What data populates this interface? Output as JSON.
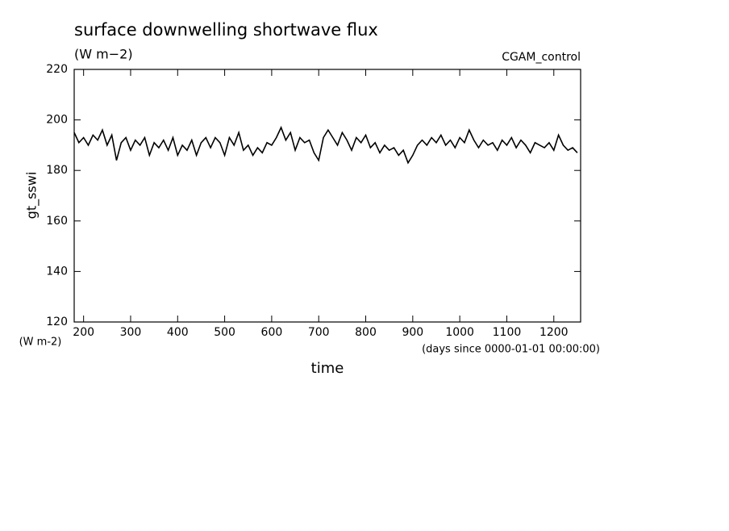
{
  "chart_data": {
    "type": "line",
    "title": "surface downwelling shortwave flux",
    "subtitle": "(W m−2)",
    "annotation": "CGAM_control",
    "y_label": "gt_sswi",
    "y_units": "(W m-2)",
    "x_label": "time",
    "x_units": "(days since 0000-01-01 00:00:00)",
    "xlim": [
      180,
      1257
    ],
    "ylim": [
      120,
      220
    ],
    "xticks": [
      200,
      300,
      400,
      500,
      600,
      700,
      800,
      900,
      1000,
      1100,
      1200
    ],
    "yticks": [
      120,
      140,
      160,
      180,
      200,
      220
    ],
    "grid": false,
    "x": [
      180,
      190,
      200,
      210,
      220,
      230,
      240,
      250,
      260,
      270,
      280,
      290,
      300,
      310,
      320,
      330,
      340,
      350,
      360,
      370,
      380,
      390,
      400,
      410,
      420,
      430,
      440,
      450,
      460,
      470,
      480,
      490,
      500,
      510,
      520,
      530,
      540,
      550,
      560,
      570,
      580,
      590,
      600,
      610,
      620,
      630,
      640,
      650,
      660,
      670,
      680,
      690,
      700,
      710,
      720,
      730,
      740,
      750,
      760,
      770,
      780,
      790,
      800,
      810,
      820,
      830,
      840,
      850,
      860,
      870,
      880,
      890,
      900,
      910,
      920,
      930,
      940,
      950,
      960,
      970,
      980,
      990,
      1000,
      1010,
      1020,
      1030,
      1040,
      1050,
      1060,
      1070,
      1080,
      1090,
      1100,
      1110,
      1120,
      1130,
      1140,
      1150,
      1160,
      1170,
      1180,
      1190,
      1200,
      1210,
      1220,
      1230,
      1240,
      1250
    ],
    "series": [
      {
        "name": "gt_sswi",
        "color": "#000000",
        "values": [
          195,
          191,
          193,
          190,
          194,
          192,
          196,
          190,
          194,
          184,
          191,
          193,
          188,
          192,
          190,
          193,
          186,
          191,
          189,
          192,
          188,
          193,
          186,
          190,
          188,
          192,
          186,
          191,
          193,
          189,
          193,
          191,
          186,
          193,
          190,
          195,
          188,
          190,
          186,
          189,
          187,
          191,
          190,
          193,
          197,
          192,
          195,
          188,
          193,
          191,
          192,
          187,
          184,
          193,
          196,
          193,
          190,
          195,
          192,
          188,
          193,
          191,
          194,
          189,
          191,
          187,
          190,
          188,
          189,
          186,
          188,
          183,
          186,
          190,
          192,
          190,
          193,
          191,
          194,
          190,
          192,
          189,
          193,
          191,
          196,
          192,
          189,
          192,
          190,
          191,
          188,
          192,
          190,
          193,
          189,
          192,
          190,
          187,
          191,
          190,
          189,
          191,
          188,
          194,
          190,
          188,
          189,
          187
        ]
      }
    ]
  }
}
